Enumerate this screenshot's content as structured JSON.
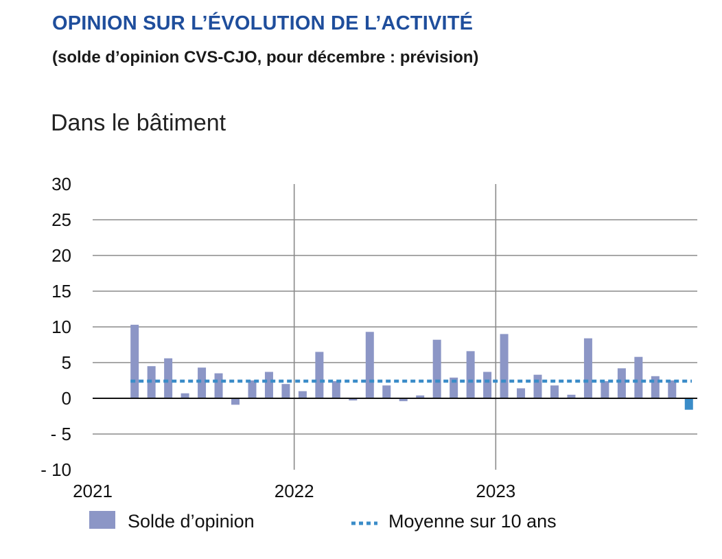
{
  "header": {
    "title": "OPINION SUR L’ÉVOLUTION DE L’ACTIVITÉ",
    "subtitle": "(solde d’opinion CVS-CJO, pour décembre : prévision)",
    "panel_title": "Dans le bâtiment"
  },
  "chart_data": {
    "type": "bar",
    "title": "OPINION SUR L’ÉVOLUTION DE L’ACTIVITÉ",
    "subtitle": "(solde d’opinion CVS-CJO, pour décembre : prévision)",
    "panel": "Dans le bâtiment",
    "ylim": [
      -10,
      30
    ],
    "y_ticks": [
      30,
      25,
      20,
      15,
      10,
      5,
      0,
      -5,
      -10
    ],
    "y_tick_labels": [
      "30",
      "25",
      "20",
      "15",
      "10",
      "5",
      "0",
      "- 5",
      "- 10"
    ],
    "x_tick_labels": [
      "2021",
      "2022",
      "2023"
    ],
    "x_label_positions": [
      0,
      12,
      24
    ],
    "x_vertical_gridlines_at": [
      12,
      24
    ],
    "x_range": [
      0,
      36
    ],
    "grid": "horizontal",
    "legend_position": "bottom",
    "series": [
      {
        "name": "Solde d’opinion",
        "kind": "bar",
        "color": "#8c96c6",
        "forecast_color": "#3a8cc8",
        "forecast_index": 35,
        "x": [
          2.5,
          3.5,
          4.5,
          5.5,
          6.5,
          7.5,
          8.5,
          9.5,
          10.5,
          11.5,
          12.5,
          13.5,
          14.5,
          15.5,
          16.5,
          17.5,
          18.5,
          19.5,
          20.5,
          21.5,
          22.5,
          23.5,
          24.5,
          25.5,
          26.5,
          27.5,
          28.5,
          29.5,
          30.5,
          31.5,
          32.5,
          33.5,
          34.5,
          35.5
        ],
        "values": [
          10.3,
          4.5,
          5.6,
          0.7,
          4.3,
          3.5,
          -0.9,
          2.5,
          3.7,
          2.0,
          1.0,
          6.5,
          2.4,
          -0.3,
          9.3,
          1.8,
          -0.4,
          0.4,
          8.2,
          2.9,
          6.6,
          3.7,
          9.0,
          1.4,
          3.3,
          1.8,
          0.5,
          8.4,
          2.4,
          4.2,
          5.8,
          3.1,
          2.5,
          -1.6
        ]
      },
      {
        "name": "Moyenne sur 10 ans",
        "kind": "hline",
        "color": "#3a8cc8",
        "value": 2.4,
        "x_start": 2.5,
        "x_end": 36
      }
    ]
  }
}
